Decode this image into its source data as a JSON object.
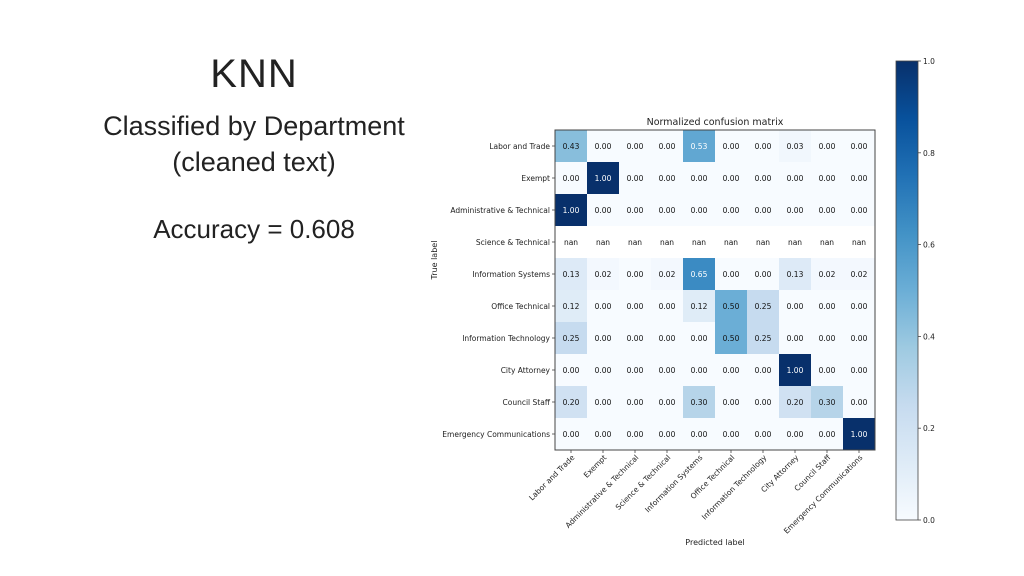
{
  "slide": {
    "title": "KNN",
    "subtitle_line1": "Classified by Department",
    "subtitle_line2": "(cleaned text)",
    "accuracy": "Accuracy = 0.608"
  },
  "chart_data": {
    "type": "heatmap",
    "title": "Normalized confusion matrix",
    "xlabel": "Predicted label",
    "ylabel": "True label",
    "colormap": "Blues",
    "colorbar": {
      "range": [
        0.0,
        1.0
      ],
      "ticks": [
        "0.0",
        "0.2",
        "0.4",
        "0.6",
        "0.8",
        "1.0"
      ]
    },
    "categories": [
      "Labor and Trade",
      "Exempt",
      "Administrative & Technical",
      "Science & Technical",
      "Information Systems",
      "Office Technical",
      "Information Technology",
      "City Attorney",
      "Council Staff",
      "Emergency Communications"
    ],
    "matrix": [
      [
        "0.43",
        "0.00",
        "0.00",
        "0.00",
        "0.53",
        "0.00",
        "0.00",
        "0.03",
        "0.00",
        "0.00"
      ],
      [
        "0.00",
        "1.00",
        "0.00",
        "0.00",
        "0.00",
        "0.00",
        "0.00",
        "0.00",
        "0.00",
        "0.00"
      ],
      [
        "1.00",
        "0.00",
        "0.00",
        "0.00",
        "0.00",
        "0.00",
        "0.00",
        "0.00",
        "0.00",
        "0.00"
      ],
      [
        "nan",
        "nan",
        "nan",
        "nan",
        "nan",
        "nan",
        "nan",
        "nan",
        "nan",
        "nan"
      ],
      [
        "0.13",
        "0.02",
        "0.00",
        "0.02",
        "0.65",
        "0.00",
        "0.00",
        "0.13",
        "0.02",
        "0.02"
      ],
      [
        "0.12",
        "0.00",
        "0.00",
        "0.00",
        "0.12",
        "0.50",
        "0.25",
        "0.00",
        "0.00",
        "0.00"
      ],
      [
        "0.25",
        "0.00",
        "0.00",
        "0.00",
        "0.00",
        "0.50",
        "0.25",
        "0.00",
        "0.00",
        "0.00"
      ],
      [
        "0.00",
        "0.00",
        "0.00",
        "0.00",
        "0.00",
        "0.00",
        "0.00",
        "1.00",
        "0.00",
        "0.00"
      ],
      [
        "0.20",
        "0.00",
        "0.00",
        "0.00",
        "0.30",
        "0.00",
        "0.00",
        "0.20",
        "0.30",
        "0.00"
      ],
      [
        "0.00",
        "0.00",
        "0.00",
        "0.00",
        "0.00",
        "0.00",
        "0.00",
        "0.00",
        "0.00",
        "1.00"
      ]
    ]
  }
}
